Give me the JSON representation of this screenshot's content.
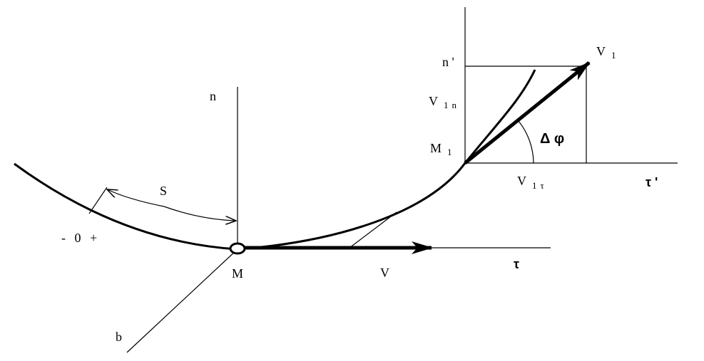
{
  "labels": {
    "n": "n",
    "s": "S",
    "sign": "- 0 +",
    "m": "M",
    "v": "V",
    "tau": "τ",
    "b": "b",
    "n_prime": "n '",
    "v1": {
      "main": "V",
      "sub": "1"
    },
    "v1n": {
      "main": "V",
      "sub": "1n"
    },
    "m1": {
      "main": "M",
      "sub": "1"
    },
    "dphi": "Δ φ",
    "v1tau": {
      "main": "V",
      "sub": "1τ"
    },
    "tau_prime": "τ '"
  }
}
